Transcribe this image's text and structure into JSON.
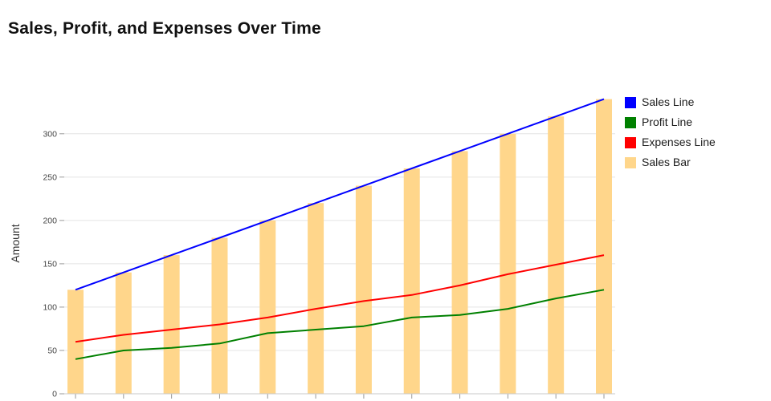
{
  "page": {
    "title": "Sales, Profit, and Expenses Over Time"
  },
  "chart_data": {
    "type": "bar+line combo",
    "title": "Sales, Profit, and Expenses Over Time",
    "n_points": 12,
    "x_tick_labels": [],
    "ylabel": "Amount",
    "yticks": [
      0,
      50,
      100,
      150,
      200,
      250,
      300
    ],
    "ylim": [
      0,
      347
    ],
    "grid": true,
    "legend_position": "top-right",
    "colors": {
      "grid": "#e4e4e4",
      "axis": "#c9c9c9",
      "tick": "#999999",
      "bar": "#ffd68b",
      "sales_line": "#0000ff",
      "profit_line": "#008000",
      "expenses_line": "#ff0000"
    },
    "bar_series": {
      "name": "Sales Bar",
      "color": "#ffd68b",
      "values": [
        120,
        140,
        160,
        180,
        200,
        220,
        240,
        260,
        280,
        300,
        320,
        340
      ]
    },
    "series": [
      {
        "name": "Sales Line",
        "color": "#0000ff",
        "values": [
          120,
          140,
          160,
          180,
          200,
          220,
          240,
          260,
          280,
          300,
          320,
          340
        ]
      },
      {
        "name": "Profit Line",
        "color": "#008000",
        "values": [
          40,
          50,
          53,
          58,
          70,
          74,
          78,
          88,
          91,
          98,
          110,
          120
        ]
      },
      {
        "name": "Expenses Line",
        "color": "#ff0000",
        "values": [
          60,
          68,
          74,
          80,
          88,
          98,
          107,
          114,
          125,
          138,
          149,
          160
        ]
      }
    ]
  }
}
